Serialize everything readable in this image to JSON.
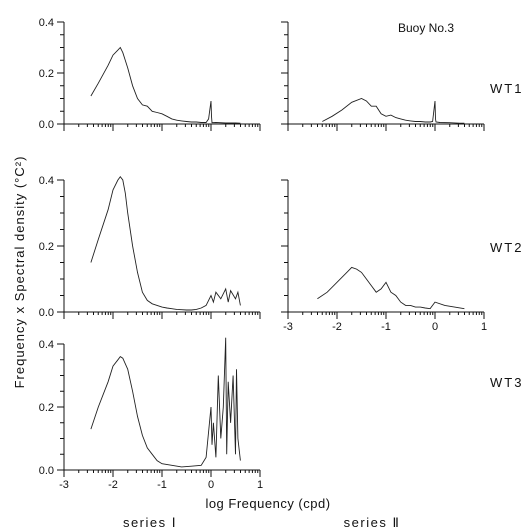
{
  "figure": {
    "buoy_label": "Buoy No.3",
    "ylabel": "Frequency x Spectral density (°C²)",
    "xlabel": "log Frequency (cpd)",
    "column_labels": [
      "series Ⅰ",
      "series Ⅱ"
    ],
    "row_labels": [
      "WT1",
      "WT2",
      "WT3"
    ]
  },
  "chart_data": [
    {
      "type": "line",
      "panel": "WT1 series I",
      "xlim": [
        -3,
        1
      ],
      "ylim": [
        0,
        0.4
      ],
      "yticks": [
        "0.0",
        "0.2",
        "0.4"
      ],
      "x": [
        -2.45,
        -2.3,
        -2.1,
        -2.0,
        -1.9,
        -1.85,
        -1.8,
        -1.7,
        -1.6,
        -1.5,
        -1.4,
        -1.3,
        -1.2,
        -1.1,
        -1.0,
        -0.9,
        -0.8,
        -0.7,
        -0.6,
        -0.5,
        -0.4,
        -0.3,
        -0.2,
        -0.1,
        -0.05,
        0.0,
        0.01,
        0.02,
        0.1,
        0.3,
        0.5,
        0.6
      ],
      "y": [
        0.11,
        0.16,
        0.23,
        0.27,
        0.29,
        0.3,
        0.28,
        0.22,
        0.15,
        0.1,
        0.075,
        0.07,
        0.05,
        0.045,
        0.04,
        0.03,
        0.02,
        0.015,
        0.012,
        0.01,
        0.008,
        0.008,
        0.006,
        0.006,
        0.02,
        0.09,
        0.03,
        0.005,
        0.006,
        0.004,
        0.004,
        0.003
      ]
    },
    {
      "type": "line",
      "panel": "WT1 series II",
      "xlim": [
        -3,
        1
      ],
      "ylim": [
        0,
        0.4
      ],
      "x": [
        -2.3,
        -2.1,
        -1.9,
        -1.7,
        -1.5,
        -1.4,
        -1.3,
        -1.2,
        -1.1,
        -1.0,
        -0.9,
        -0.8,
        -0.7,
        -0.6,
        -0.5,
        -0.4,
        -0.3,
        -0.2,
        -0.1,
        -0.05,
        0.0,
        0.01,
        0.02,
        0.1,
        0.3,
        0.5,
        0.6
      ],
      "y": [
        0.01,
        0.03,
        0.055,
        0.085,
        0.1,
        0.09,
        0.07,
        0.07,
        0.04,
        0.03,
        0.035,
        0.025,
        0.02,
        0.015,
        0.012,
        0.01,
        0.01,
        0.008,
        0.008,
        0.01,
        0.09,
        0.02,
        0.008,
        0.006,
        0.005,
        0.003,
        0.003
      ]
    },
    {
      "type": "line",
      "panel": "WT2 series I",
      "xlim": [
        -3,
        1
      ],
      "ylim": [
        0,
        0.4
      ],
      "yticks": [
        "0.0",
        "0.2",
        "0.4"
      ],
      "x": [
        -2.45,
        -2.3,
        -2.1,
        -2.0,
        -1.9,
        -1.85,
        -1.8,
        -1.75,
        -1.7,
        -1.6,
        -1.5,
        -1.4,
        -1.3,
        -1.2,
        -1.1,
        -1.0,
        -0.9,
        -0.8,
        -0.7,
        -0.6,
        -0.5,
        -0.4,
        -0.3,
        -0.2,
        -0.1,
        0.0,
        0.05,
        0.1,
        0.2,
        0.3,
        0.35,
        0.4,
        0.5,
        0.55,
        0.6
      ],
      "y": [
        0.15,
        0.22,
        0.31,
        0.37,
        0.4,
        0.41,
        0.4,
        0.36,
        0.3,
        0.2,
        0.12,
        0.06,
        0.035,
        0.025,
        0.02,
        0.015,
        0.012,
        0.01,
        0.008,
        0.007,
        0.006,
        0.006,
        0.008,
        0.012,
        0.02,
        0.05,
        0.03,
        0.06,
        0.04,
        0.07,
        0.03,
        0.065,
        0.04,
        0.06,
        0.02
      ]
    },
    {
      "type": "line",
      "panel": "WT2 series II",
      "xlim": [
        -3,
        1
      ],
      "ylim": [
        0,
        0.4
      ],
      "xticks": [
        "-3",
        "-2",
        "-1",
        "0",
        "1"
      ],
      "x": [
        -2.4,
        -2.2,
        -2.0,
        -1.8,
        -1.7,
        -1.6,
        -1.5,
        -1.4,
        -1.3,
        -1.2,
        -1.1,
        -1.0,
        -0.9,
        -0.8,
        -0.7,
        -0.6,
        -0.5,
        -0.4,
        -0.3,
        -0.2,
        -0.1,
        0.0,
        0.2,
        0.4,
        0.6
      ],
      "y": [
        0.04,
        0.06,
        0.09,
        0.12,
        0.135,
        0.13,
        0.12,
        0.1,
        0.08,
        0.06,
        0.07,
        0.09,
        0.06,
        0.05,
        0.03,
        0.02,
        0.02,
        0.015,
        0.015,
        0.012,
        0.01,
        0.03,
        0.02,
        0.015,
        0.01
      ]
    },
    {
      "type": "line",
      "panel": "WT3 series I",
      "xlim": [
        -3,
        1
      ],
      "ylim": [
        0,
        0.4
      ],
      "yticks": [
        "0.0",
        "0.2",
        "0.4"
      ],
      "xticks": [
        "-3",
        "-2",
        "-1",
        "0",
        "1"
      ],
      "x": [
        -2.45,
        -2.3,
        -2.1,
        -2.0,
        -1.9,
        -1.85,
        -1.8,
        -1.7,
        -1.6,
        -1.5,
        -1.4,
        -1.3,
        -1.2,
        -1.1,
        -1.0,
        -0.8,
        -0.6,
        -0.4,
        -0.2,
        -0.1,
        0.0,
        0.02,
        0.05,
        0.1,
        0.15,
        0.2,
        0.25,
        0.3,
        0.32,
        0.35,
        0.4,
        0.45,
        0.5,
        0.52,
        0.55,
        0.6
      ],
      "y": [
        0.13,
        0.2,
        0.28,
        0.33,
        0.35,
        0.36,
        0.355,
        0.32,
        0.25,
        0.17,
        0.11,
        0.07,
        0.05,
        0.03,
        0.02,
        0.015,
        0.01,
        0.012,
        0.015,
        0.04,
        0.2,
        0.08,
        0.15,
        0.04,
        0.3,
        0.1,
        0.2,
        0.42,
        0.05,
        0.28,
        0.15,
        0.3,
        0.05,
        0.32,
        0.1,
        0.03
      ]
    }
  ]
}
